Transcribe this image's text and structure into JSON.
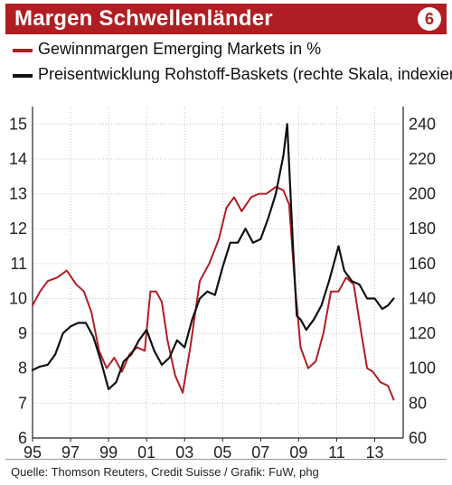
{
  "header": {
    "title": "Margen Schwellenländer",
    "badge": "6"
  },
  "legend": [
    {
      "label": "Gewinnmargen Emerging Markets in %",
      "color": "#b01e23"
    },
    {
      "label": "Preisentwicklung Rohstoff-Baskets (rechte Skala, indexiert)",
      "color": "#111111"
    }
  ],
  "source": "Quelle: Thomson Reuters, Credit Suisse / Grafik: FuW, phg",
  "chart_data": {
    "type": "line",
    "x_tick_labels": [
      "95",
      "97",
      "99",
      "01",
      "03",
      "05",
      "07",
      "09",
      "11",
      "13"
    ],
    "x_tick_years": [
      1995,
      1997,
      1999,
      2001,
      2003,
      2005,
      2007,
      2009,
      2011,
      2013
    ],
    "xlim": [
      1995,
      2014.5
    ],
    "left_axis": {
      "ticks": [
        6,
        7,
        8,
        9,
        10,
        11,
        12,
        13,
        14,
        15
      ],
      "ylim": [
        6,
        15.5
      ]
    },
    "right_axis": {
      "ticks": [
        60,
        80,
        100,
        120,
        140,
        160,
        180,
        200,
        220,
        240
      ],
      "ylim": [
        60,
        250
      ]
    },
    "grid": true,
    "series": [
      {
        "name": "Gewinnmargen Emerging Markets in %",
        "axis": "left",
        "color": "#b01e23",
        "points": [
          [
            1995.0,
            9.8
          ],
          [
            1995.4,
            10.2
          ],
          [
            1995.8,
            10.5
          ],
          [
            1996.3,
            10.6
          ],
          [
            1996.8,
            10.8
          ],
          [
            1997.3,
            10.4
          ],
          [
            1997.7,
            10.2
          ],
          [
            1998.1,
            9.6
          ],
          [
            1998.5,
            8.5
          ],
          [
            1998.9,
            8.0
          ],
          [
            1999.3,
            8.3
          ],
          [
            1999.7,
            7.9
          ],
          [
            2000.1,
            8.4
          ],
          [
            2000.5,
            8.6
          ],
          [
            2000.9,
            8.5
          ],
          [
            2001.2,
            10.2
          ],
          [
            2001.5,
            10.2
          ],
          [
            2001.8,
            9.9
          ],
          [
            2002.1,
            8.8
          ],
          [
            2002.5,
            7.8
          ],
          [
            2002.9,
            7.3
          ],
          [
            2003.3,
            8.6
          ],
          [
            2003.8,
            10.5
          ],
          [
            2004.3,
            11.0
          ],
          [
            2004.8,
            11.7
          ],
          [
            2005.2,
            12.6
          ],
          [
            2005.6,
            12.9
          ],
          [
            2006.0,
            12.5
          ],
          [
            2006.5,
            12.9
          ],
          [
            2006.9,
            13.0
          ],
          [
            2007.3,
            13.0
          ],
          [
            2007.8,
            13.2
          ],
          [
            2008.2,
            13.1
          ],
          [
            2008.5,
            12.7
          ],
          [
            2008.8,
            10.4
          ],
          [
            2009.1,
            8.6
          ],
          [
            2009.5,
            8.0
          ],
          [
            2009.9,
            8.2
          ],
          [
            2010.3,
            9.0
          ],
          [
            2010.7,
            10.2
          ],
          [
            2011.1,
            10.2
          ],
          [
            2011.5,
            10.6
          ],
          [
            2011.9,
            10.4
          ],
          [
            2012.3,
            9.0
          ],
          [
            2012.6,
            8.0
          ],
          [
            2012.9,
            7.9
          ],
          [
            2013.3,
            7.6
          ],
          [
            2013.7,
            7.5
          ],
          [
            2014.0,
            7.1
          ]
        ]
      },
      {
        "name": "Preisentwicklung Rohstoff-Baskets (rechte Skala, indexiert)",
        "axis": "right",
        "color": "#111111",
        "points": [
          [
            1995.0,
            99
          ],
          [
            1995.4,
            101
          ],
          [
            1995.8,
            102
          ],
          [
            1996.2,
            108
          ],
          [
            1996.6,
            120
          ],
          [
            1997.0,
            124
          ],
          [
            1997.4,
            126
          ],
          [
            1997.8,
            126
          ],
          [
            1998.2,
            118
          ],
          [
            1998.6,
            104
          ],
          [
            1999.0,
            88
          ],
          [
            1999.4,
            92
          ],
          [
            1999.8,
            104
          ],
          [
            2000.2,
            108
          ],
          [
            2000.6,
            116
          ],
          [
            2001.0,
            122
          ],
          [
            2001.4,
            110
          ],
          [
            2001.8,
            102
          ],
          [
            2002.2,
            106
          ],
          [
            2002.6,
            116
          ],
          [
            2003.0,
            112
          ],
          [
            2003.4,
            128
          ],
          [
            2003.8,
            140
          ],
          [
            2004.2,
            144
          ],
          [
            2004.6,
            142
          ],
          [
            2005.0,
            158
          ],
          [
            2005.4,
            172
          ],
          [
            2005.8,
            172
          ],
          [
            2006.2,
            180
          ],
          [
            2006.6,
            172
          ],
          [
            2007.0,
            174
          ],
          [
            2007.4,
            186
          ],
          [
            2007.8,
            200
          ],
          [
            2008.2,
            222
          ],
          [
            2008.4,
            240
          ],
          [
            2008.7,
            170
          ],
          [
            2008.9,
            130
          ],
          [
            2009.1,
            128
          ],
          [
            2009.4,
            122
          ],
          [
            2009.8,
            128
          ],
          [
            2010.2,
            136
          ],
          [
            2010.6,
            150
          ],
          [
            2010.9,
            162
          ],
          [
            2011.1,
            170
          ],
          [
            2011.4,
            156
          ],
          [
            2011.8,
            150
          ],
          [
            2012.2,
            148
          ],
          [
            2012.6,
            140
          ],
          [
            2013.0,
            140
          ],
          [
            2013.4,
            134
          ],
          [
            2013.7,
            136
          ],
          [
            2014.0,
            140
          ]
        ]
      }
    ]
  }
}
